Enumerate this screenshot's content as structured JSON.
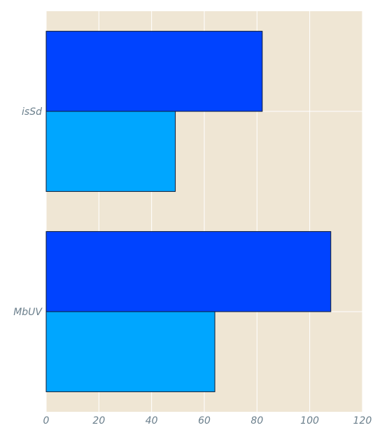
{
  "chart_data": {
    "type": "bar",
    "orientation": "horizontal",
    "categories": [
      "isSd",
      "MbUV"
    ],
    "series": [
      {
        "values": [
          82,
          108
        ]
      },
      {
        "values": [
          49,
          64
        ]
      }
    ],
    "xlim": [
      0,
      120
    ],
    "xticks": [
      "0",
      "20",
      "40",
      "60",
      "80",
      "100",
      "120"
    ],
    "grid": true,
    "title": "",
    "xlabel": "",
    "ylabel": "",
    "colors": {
      "background": "#efe6d4",
      "grid": "#ffffff",
      "series": [
        "#0043ff",
        "#00a6ff"
      ],
      "bar_edge": "#0b1a33",
      "axis_text": "#6b7f8c"
    }
  }
}
